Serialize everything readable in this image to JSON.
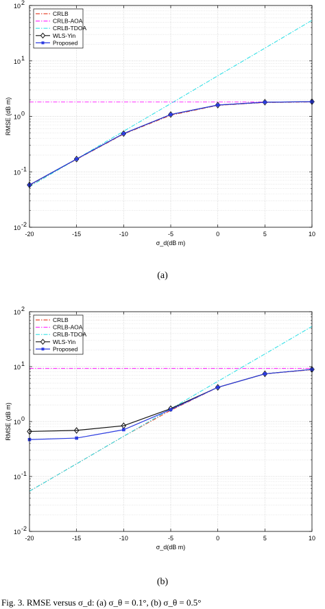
{
  "chart_data": [
    {
      "type": "line",
      "panel": "(a)",
      "xlabel": "σ_d(dB m)",
      "ylabel": "RMSE (dB m)",
      "yscale": "log",
      "xlim": [
        -20,
        10
      ],
      "ylim": [
        0.01,
        100
      ],
      "x_ticks": [
        "-20",
        "-15",
        "-10",
        "-5",
        "0",
        "5",
        "10"
      ],
      "y_ticks": [
        {
          "base": "10",
          "exp": "-2"
        },
        {
          "base": "10",
          "exp": "-1"
        },
        {
          "base": "10",
          "exp": "0"
        },
        {
          "base": "10",
          "exp": "1"
        },
        {
          "base": "10",
          "exp": "2"
        }
      ],
      "grid": true,
      "legend_position": "top-left",
      "x": [
        -20,
        -15,
        -10,
        -5,
        0,
        5,
        10
      ],
      "series": [
        {
          "name": "CRLB",
          "color": "#e8452c",
          "style": "dashdot",
          "marker": "none",
          "values": [
            0.057,
            0.168,
            0.48,
            1.05,
            1.58,
            1.78,
            1.82
          ]
        },
        {
          "name": "CRLB-AOA",
          "color": "#ff33ff",
          "style": "dashdot",
          "marker": "none",
          "values": [
            1.82,
            1.82,
            1.82,
            1.82,
            1.82,
            1.82,
            1.82
          ]
        },
        {
          "name": "CRLB-TDOA",
          "color": "#33e0e6",
          "style": "dashdot",
          "marker": "none",
          "values": [
            0.054,
            0.17,
            0.54,
            1.7,
            5.4,
            17,
            54
          ]
        },
        {
          "name": "WLS-Yin",
          "color": "#111111",
          "style": "solid",
          "marker": "diamond",
          "values": [
            0.058,
            0.17,
            0.49,
            1.08,
            1.6,
            1.8,
            1.84
          ]
        },
        {
          "name": "Proposed",
          "color": "#2b3be0",
          "style": "solid",
          "marker": "square",
          "values": [
            0.058,
            0.17,
            0.49,
            1.08,
            1.6,
            1.8,
            1.84
          ]
        }
      ]
    },
    {
      "type": "line",
      "panel": "(b)",
      "xlabel": "σ_d(dB m)",
      "ylabel": "RMSE (dB m)",
      "yscale": "log",
      "xlim": [
        -20,
        10
      ],
      "ylim": [
        0.01,
        100
      ],
      "x_ticks": [
        "-20",
        "-15",
        "-10",
        "-5",
        "0",
        "5",
        "10"
      ],
      "y_ticks": [
        {
          "base": "10",
          "exp": "-2"
        },
        {
          "base": "10",
          "exp": "-1"
        },
        {
          "base": "10",
          "exp": "0"
        },
        {
          "base": "10",
          "exp": "1"
        },
        {
          "base": "10",
          "exp": "2"
        }
      ],
      "grid": true,
      "legend_position": "top-left",
      "x": [
        -20,
        -15,
        -10,
        -5,
        0,
        5,
        10
      ],
      "series": [
        {
          "name": "CRLB",
          "color": "#e8452c",
          "style": "dashdot",
          "marker": "none",
          "values": [
            0.054,
            0.17,
            0.54,
            1.6,
            4.2,
            7.4,
            8.8
          ]
        },
        {
          "name": "CRLB-AOA",
          "color": "#ff33ff",
          "style": "dashdot",
          "marker": "none",
          "values": [
            9.3,
            9.3,
            9.3,
            9.3,
            9.3,
            9.3,
            9.3
          ]
        },
        {
          "name": "CRLB-TDOA",
          "color": "#33e0e6",
          "style": "dashdot",
          "marker": "none",
          "values": [
            0.054,
            0.17,
            0.54,
            1.7,
            5.4,
            17,
            54
          ]
        },
        {
          "name": "WLS-Yin",
          "color": "#111111",
          "style": "solid",
          "marker": "diamond",
          "values": [
            0.66,
            0.69,
            0.84,
            1.72,
            4.2,
            7.4,
            8.9
          ]
        },
        {
          "name": "Proposed",
          "color": "#2b3be0",
          "style": "solid",
          "marker": "square",
          "values": [
            0.47,
            0.5,
            0.71,
            1.65,
            4.2,
            7.4,
            8.9
          ]
        }
      ]
    }
  ],
  "subcaptions": [
    "(a)",
    "(b)"
  ],
  "caption": "Fig. 3. RMSE versus σ_d: (a) σ_θ = 0.1°, (b) σ_θ = 0.5°"
}
